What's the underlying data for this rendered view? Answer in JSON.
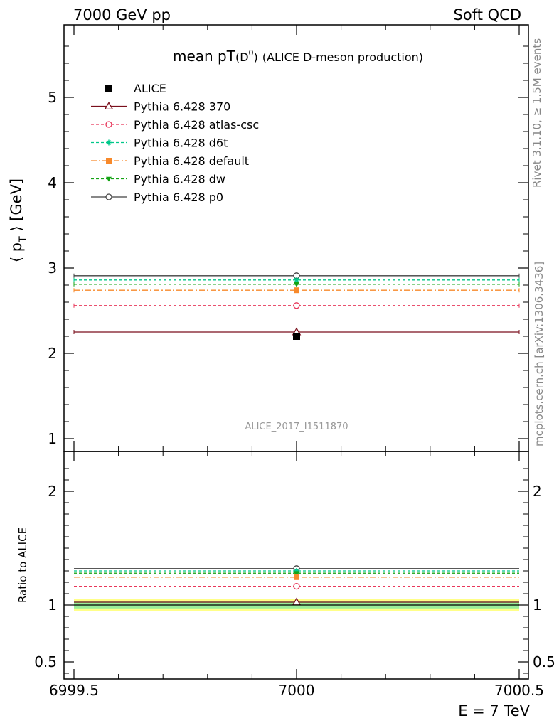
{
  "header": {
    "left": "7000 GeV pp",
    "right": "Soft QCD"
  },
  "side_text": {
    "rivet": "Rivet 3.1.10, ≥ 1.5M events",
    "mcplots": "mcplots.cern.ch [arXiv:1306.3436]"
  },
  "chart_data": {
    "type": "scatter",
    "title_main": "mean pT",
    "title_paren_open": "(D",
    "title_sup": "0",
    "title_paren_close": ")",
    "title_sub": "(ALICE D-meson production)",
    "analysis_label": "ALICE_2017_I1511870",
    "xlabel": "E = 7 TeV",
    "ylabel_main": "⟨ p",
    "ylabel_sub": "T",
    "ylabel_end": " ⟩ [GeV]",
    "ratio_ylabel": "Ratio to ALICE",
    "xlim": [
      6999.5,
      7000.5
    ],
    "ylim": [
      0.85,
      5.85
    ],
    "ratio_ylim": [
      0.35,
      2.35
    ],
    "x_ticks": [
      {
        "value": 6999.5,
        "label": "6999.5"
      },
      {
        "value": 7000,
        "label": "7000"
      },
      {
        "value": 7000.5,
        "label": "7000.5"
      }
    ],
    "y_ticks": [
      {
        "value": 1,
        "label": "1"
      },
      {
        "value": 2,
        "label": "2"
      },
      {
        "value": 3,
        "label": "3"
      },
      {
        "value": 4,
        "label": "4"
      },
      {
        "value": 5,
        "label": "5"
      }
    ],
    "ratio_y_ticks": [
      {
        "value": 0.5,
        "label": "0.5"
      },
      {
        "value": 1,
        "label": "1"
      },
      {
        "value": 2,
        "label": "2"
      }
    ],
    "legend_position": "top-left",
    "series": [
      {
        "name": "ALICE",
        "x": 7000,
        "y": 2.2,
        "ratio": 1.0,
        "data": true,
        "color": "#000000",
        "marker": "square-filled",
        "dash": "none"
      },
      {
        "name": "Pythia 6.428 370",
        "x": 7000,
        "y": 2.25,
        "ratio": 1.025,
        "color": "#7a0f1c",
        "marker": "triangle-open",
        "dash": "solid"
      },
      {
        "name": "Pythia 6.428 atlas-csc",
        "x": 7000,
        "y": 2.56,
        "ratio": 1.165,
        "color": "#e8375a",
        "marker": "circle-open",
        "dash": "4,3"
      },
      {
        "name": "Pythia 6.428 d6t",
        "x": 7000,
        "y": 2.86,
        "ratio": 1.3,
        "color": "#00c88a",
        "marker": "star",
        "dash": "4,3"
      },
      {
        "name": "Pythia 6.428 default",
        "x": 7000,
        "y": 2.74,
        "ratio": 1.245,
        "color": "#f7892b",
        "marker": "square-filled",
        "dash": "8,3,2,3"
      },
      {
        "name": "Pythia 6.428 dw",
        "x": 7000,
        "y": 2.81,
        "ratio": 1.28,
        "color": "#14a314",
        "marker": "triangle-down-filled",
        "dash": "4,3"
      },
      {
        "name": "Pythia 6.428 p0",
        "x": 7000,
        "y": 2.91,
        "ratio": 1.32,
        "color": "#404040",
        "marker": "circle-open",
        "dash": "solid"
      }
    ],
    "ratio_bands": [
      {
        "low": 0.95,
        "high": 1.05,
        "color": "#ffff88"
      },
      {
        "low": 0.97,
        "high": 1.03,
        "color": "#99ee99"
      }
    ]
  }
}
